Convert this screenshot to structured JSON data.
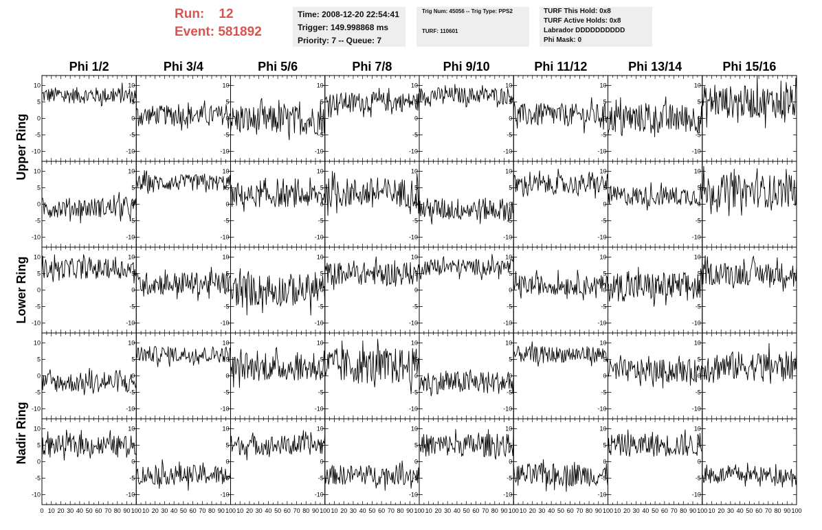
{
  "header": {
    "run_label": "Run:",
    "run_value": "12",
    "event_label": "Event:",
    "event_value": "581892",
    "time": "Time: 2008-12-20 22:54:41",
    "trigger": "Trigger: 149.998868 ms",
    "priority": "Priority: 7 -- Queue: 7",
    "trig_num": "Trig Num: 45056 -- Trig Type: PPS2",
    "turf": "TURF: 110601",
    "turf_this_hold": "TURF This Hold: 0x8",
    "turf_active_holds": "TURF Active Holds: 0x8",
    "labrador": "Labrador DDDDDDDDDD",
    "phi_mask": "Phi Mask: 0"
  },
  "colors": {
    "header_red": "#d9534f",
    "box_bg": "#eeeeee",
    "trace": "#000000"
  },
  "chart_data": {
    "type": "line",
    "grid": false,
    "columns": [
      "Phi 1/2",
      "Phi 3/4",
      "Phi 5/6",
      "Phi 7/8",
      "Phi 9/10",
      "Phi 11/12",
      "Phi 13/14",
      "Phi 15/16"
    ],
    "rows": [
      "Upper Ring",
      "Lower Ring",
      "Nadir Ring"
    ],
    "xlim": [
      0,
      100
    ],
    "ylim": [
      -13,
      13
    ],
    "y_ticks": [
      -10,
      -5,
      0,
      5,
      10
    ],
    "x_tick_labels": [
      "0",
      "10",
      "20",
      "30",
      "40",
      "50",
      "60",
      "70",
      "80",
      "90",
      "100"
    ],
    "x_tick_values": [
      0,
      10,
      20,
      30,
      40,
      50,
      60,
      70,
      80,
      90,
      100
    ],
    "samples_per_trace": 128,
    "panel_rows": [
      {
        "series": [
          {
            "name": "Phi 1/2",
            "level": 7,
            "spread": 2.5
          },
          {
            "name": "Phi 3/4",
            "level": 1,
            "spread": 3
          },
          {
            "name": "Phi 5/6",
            "level": -0.5,
            "spread": 4.5
          },
          {
            "name": "Phi 7/8",
            "level": 5,
            "spread": 3
          },
          {
            "name": "Phi 9/10",
            "level": 7,
            "spread": 2.5
          },
          {
            "name": "Phi 11/12",
            "level": 1,
            "spread": 3.5
          },
          {
            "name": "Phi 13/14",
            "level": 0,
            "spread": 4.5
          },
          {
            "name": "Phi 15/16",
            "level": 5,
            "spread": 5
          }
        ]
      },
      {
        "series": [
          {
            "name": "Phi 1/2",
            "level": -1,
            "spread": 3
          },
          {
            "name": "Phi 3/4",
            "level": 6.5,
            "spread": 2.5
          },
          {
            "name": "Phi 5/6",
            "level": 2.5,
            "spread": 3.5
          },
          {
            "name": "Phi 7/8",
            "level": 3.5,
            "spread": 4.5
          },
          {
            "name": "Phi 9/10",
            "level": -1.5,
            "spread": 3.5
          },
          {
            "name": "Phi 11/12",
            "level": 6,
            "spread": 3
          },
          {
            "name": "Phi 13/14",
            "level": 2.5,
            "spread": 3
          },
          {
            "name": "Phi 15/16",
            "level": 4,
            "spread": 5
          }
        ]
      },
      {
        "series": [
          {
            "name": "Phi 1/2",
            "level": 6.5,
            "spread": 3
          },
          {
            "name": "Phi 3/4",
            "level": 2,
            "spread": 3.5
          },
          {
            "name": "Phi 5/6",
            "level": 0,
            "spread": 5
          },
          {
            "name": "Phi 7/8",
            "level": 5,
            "spread": 3.5
          },
          {
            "name": "Phi 9/10",
            "level": 7,
            "spread": 2.5
          },
          {
            "name": "Phi 11/12",
            "level": 1.5,
            "spread": 3
          },
          {
            "name": "Phi 13/14",
            "level": 1,
            "spread": 4.5
          },
          {
            "name": "Phi 15/16",
            "level": 5,
            "spread": 3.5
          }
        ]
      },
      {
        "series": [
          {
            "name": "Phi 1/2",
            "level": -2,
            "spread": 3
          },
          {
            "name": "Phi 3/4",
            "level": 6.5,
            "spread": 2.5
          },
          {
            "name": "Phi 5/6",
            "level": 2.5,
            "spread": 4
          },
          {
            "name": "Phi 7/8",
            "level": 3,
            "spread": 5.5
          },
          {
            "name": "Phi 9/10",
            "level": -2,
            "spread": 3.5
          },
          {
            "name": "Phi 11/12",
            "level": 6.5,
            "spread": 2.5
          },
          {
            "name": "Phi 13/14",
            "level": 1.5,
            "spread": 3.5
          },
          {
            "name": "Phi 15/16",
            "level": 3,
            "spread": 4.5
          }
        ]
      },
      {
        "series": [
          {
            "name": "Phi 1/2",
            "level": 5,
            "spread": 3
          },
          {
            "name": "Phi 3/4",
            "level": -4,
            "spread": 3
          },
          {
            "name": "Phi 5/6",
            "level": 5,
            "spread": 3
          },
          {
            "name": "Phi 7/8",
            "level": -4,
            "spread": 3
          },
          {
            "name": "Phi 9/10",
            "level": 5,
            "spread": 3.5
          },
          {
            "name": "Phi 11/12",
            "level": -4,
            "spread": 3.5
          },
          {
            "name": "Phi 13/14",
            "level": 5,
            "spread": 3.5
          },
          {
            "name": "Phi 15/16",
            "level": -4,
            "spread": 2.5
          }
        ]
      }
    ]
  }
}
